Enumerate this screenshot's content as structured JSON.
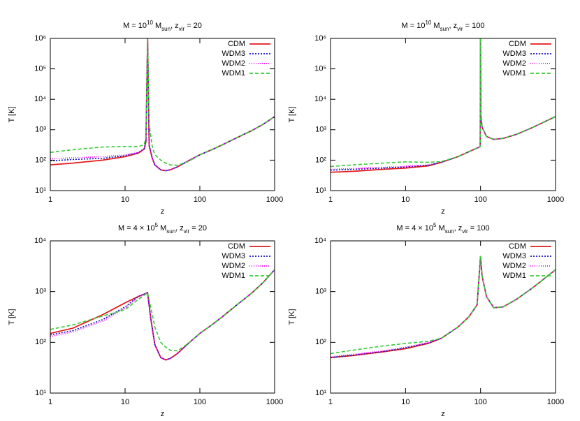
{
  "chart_data": [
    {
      "type": "line",
      "title": [
        "M = 10",
        {
          "sup": "10"
        },
        " M",
        {
          "sub": "sun"
        },
        ", z",
        {
          "sub": "vir"
        },
        " = 20"
      ],
      "xlabel": "z",
      "ylabel": "T [K]",
      "xscale": "log",
      "yscale": "log",
      "legend": "upper right",
      "xlim": [
        1,
        1000
      ],
      "ylim": [
        10,
        1000000
      ],
      "xticks": [
        1,
        10,
        100,
        1000
      ],
      "yticks": [
        {
          "value": 10,
          "label": "10¹"
        },
        {
          "value": 100,
          "label": "10²"
        },
        {
          "value": 1000,
          "label": "10³"
        },
        {
          "value": 10000,
          "label": "10⁴"
        },
        {
          "value": 100000,
          "label": "10⁵"
        },
        {
          "value": 1000000,
          "label": "10⁶"
        }
      ],
      "x": [
        1,
        2,
        5,
        10,
        15,
        18,
        19,
        20,
        21,
        23,
        25,
        30,
        35,
        40,
        50,
        70,
        100,
        150,
        200,
        300,
        500,
        700,
        1000
      ],
      "series": [
        {
          "name": "CDM",
          "color": "#e41a1c",
          "dash": "none",
          "values": [
            70,
            80,
            100,
            130,
            170,
            230,
            400,
            1000000,
            300,
            120,
            70,
            48,
            45,
            48,
            60,
            95,
            150,
            230,
            320,
            520,
            950,
            1500,
            2700
          ]
        },
        {
          "name": "WDM3",
          "color": "#1010d0",
          "dash": "2,2",
          "values": [
            95,
            105,
            115,
            140,
            175,
            235,
            410,
            1000000,
            300,
            120,
            70,
            48,
            45,
            48,
            60,
            95,
            150,
            230,
            320,
            520,
            950,
            1500,
            2700
          ]
        },
        {
          "name": "WDM2",
          "color": "#ff00ff",
          "dash": "1,2",
          "values": [
            110,
            120,
            130,
            150,
            180,
            240,
            420,
            1000000,
            300,
            120,
            70,
            48,
            45,
            48,
            60,
            95,
            150,
            230,
            320,
            520,
            950,
            1500,
            2700
          ]
        },
        {
          "name": "WDM1",
          "color": "#33cc33",
          "dash": "5,3",
          "values": [
            180,
            220,
            270,
            280,
            280,
            320,
            600,
            1000000,
            1500,
            300,
            150,
            100,
            80,
            70,
            68,
            90,
            150,
            230,
            320,
            520,
            950,
            1500,
            2700
          ]
        }
      ]
    },
    {
      "type": "line",
      "title": [
        "M = 10",
        {
          "sup": "10"
        },
        " M",
        {
          "sub": "sun"
        },
        ", z",
        {
          "sub": "vir"
        },
        " = 100"
      ],
      "xlabel": "z",
      "ylabel": "T [K]",
      "xscale": "log",
      "yscale": "log",
      "legend": "upper right",
      "xlim": [
        1,
        1000
      ],
      "ylim": [
        10,
        1000000
      ],
      "xticks": [
        1,
        10,
        100,
        1000
      ],
      "yticks": [
        {
          "value": 10,
          "label": "10¹"
        },
        {
          "value": 100,
          "label": "10²"
        },
        {
          "value": 1000,
          "label": "10³"
        },
        {
          "value": 10000,
          "label": "10⁴"
        },
        {
          "value": 100000,
          "label": "10⁵"
        },
        {
          "value": 1000000,
          "label": "10⁶"
        }
      ],
      "x": [
        1,
        2,
        5,
        10,
        20,
        30,
        50,
        70,
        90,
        99,
        100,
        101,
        105,
        120,
        150,
        200,
        300,
        500,
        1000
      ],
      "series": [
        {
          "name": "CDM",
          "color": "#e41a1c",
          "dash": "none",
          "values": [
            40,
            43,
            50,
            55,
            65,
            85,
            130,
            190,
            250,
            280,
            1000000,
            3000,
            1200,
            600,
            480,
            520,
            700,
            1200,
            2700
          ]
        },
        {
          "name": "WDM3",
          "color": "#1010d0",
          "dash": "2,2",
          "values": [
            47,
            50,
            55,
            60,
            68,
            85,
            130,
            190,
            250,
            280,
            1000000,
            3000,
            1200,
            600,
            480,
            520,
            700,
            1200,
            2700
          ]
        },
        {
          "name": "WDM2",
          "color": "#ff00ff",
          "dash": "1,2",
          "values": [
            50,
            53,
            58,
            63,
            70,
            86,
            130,
            190,
            250,
            280,
            1000000,
            3000,
            1200,
            600,
            480,
            520,
            700,
            1200,
            2700
          ]
        },
        {
          "name": "WDM1",
          "color": "#33cc33",
          "dash": "5,3",
          "values": [
            62,
            70,
            80,
            88,
            85,
            90,
            130,
            190,
            250,
            280,
            1000000,
            3000,
            1200,
            600,
            480,
            520,
            700,
            1200,
            2700
          ]
        }
      ]
    },
    {
      "type": "line",
      "title": [
        "M = 4 × 10",
        {
          "sup": "5"
        },
        " M",
        {
          "sub": "sun"
        },
        ", z",
        {
          "sub": "vir"
        },
        " = 20"
      ],
      "xlabel": "z",
      "ylabel": "T [K]",
      "xscale": "log",
      "yscale": "log",
      "legend": "upper right",
      "xlim": [
        1,
        1000
      ],
      "ylim": [
        10,
        10000
      ],
      "xticks": [
        1,
        10,
        100,
        1000
      ],
      "yticks": [
        {
          "value": 10,
          "label": "10¹"
        },
        {
          "value": 100,
          "label": "10²"
        },
        {
          "value": 1000,
          "label": "10³"
        },
        {
          "value": 10000,
          "label": "10⁴"
        }
      ],
      "x": [
        1,
        2,
        5,
        10,
        15,
        20,
        22,
        25,
        30,
        35,
        40,
        50,
        70,
        100,
        150,
        200,
        300,
        500,
        700,
        1000
      ],
      "series": [
        {
          "name": "CDM",
          "color": "#e41a1c",
          "dash": "none",
          "values": [
            150,
            190,
            350,
            600,
            800,
            950,
            300,
            90,
            50,
            45,
            48,
            60,
            95,
            150,
            230,
            320,
            520,
            950,
            1500,
            2700
          ]
        },
        {
          "name": "WDM3",
          "color": "#1010d0",
          "dash": "2,2",
          "values": [
            140,
            170,
            280,
            500,
            800,
            950,
            300,
            90,
            50,
            45,
            48,
            60,
            95,
            150,
            230,
            320,
            520,
            950,
            1500,
            2700
          ]
        },
        {
          "name": "WDM2",
          "color": "#ff00ff",
          "dash": "1,2",
          "values": [
            130,
            160,
            260,
            470,
            780,
            950,
            300,
            90,
            50,
            45,
            48,
            60,
            95,
            150,
            230,
            320,
            520,
            950,
            1500,
            2700
          ]
        },
        {
          "name": "WDM1",
          "color": "#33cc33",
          "dash": "5,3",
          "values": [
            180,
            220,
            330,
            440,
            700,
            950,
            500,
            200,
            100,
            80,
            70,
            68,
            95,
            150,
            230,
            320,
            520,
            950,
            1500,
            2700
          ]
        }
      ]
    },
    {
      "type": "line",
      "title": [
        "M = 4 × 10",
        {
          "sup": "5"
        },
        " M",
        {
          "sub": "sun"
        },
        ", z",
        {
          "sub": "vir"
        },
        " = 100"
      ],
      "xlabel": "z",
      "ylabel": "T [K]",
      "xscale": "log",
      "yscale": "log",
      "legend": "upper right",
      "xlim": [
        1,
        1000
      ],
      "ylim": [
        10,
        10000
      ],
      "xticks": [
        1,
        10,
        100,
        1000
      ],
      "yticks": [
        {
          "value": 10,
          "label": "10¹"
        },
        {
          "value": 100,
          "label": "10²"
        },
        {
          "value": 1000,
          "label": "10³"
        },
        {
          "value": 10000,
          "label": "10⁴"
        }
      ],
      "x": [
        1,
        2,
        5,
        10,
        20,
        30,
        50,
        70,
        90,
        100,
        105,
        120,
        150,
        200,
        300,
        500,
        1000
      ],
      "series": [
        {
          "name": "CDM",
          "color": "#e41a1c",
          "dash": "none",
          "values": [
            50,
            55,
            65,
            75,
            95,
            120,
            200,
            320,
            550,
            5000,
            2000,
            800,
            480,
            500,
            700,
            1200,
            2700
          ]
        },
        {
          "name": "WDM3",
          "color": "#1010d0",
          "dash": "2,2",
          "values": [
            50,
            56,
            66,
            78,
            97,
            120,
            200,
            320,
            550,
            5000,
            2000,
            800,
            480,
            500,
            700,
            1200,
            2700
          ]
        },
        {
          "name": "WDM2",
          "color": "#ff00ff",
          "dash": "1,2",
          "values": [
            52,
            58,
            68,
            80,
            100,
            121,
            200,
            320,
            550,
            5000,
            2000,
            800,
            480,
            500,
            700,
            1200,
            2700
          ]
        },
        {
          "name": "WDM1",
          "color": "#33cc33",
          "dash": "5,3",
          "values": [
            60,
            70,
            85,
            95,
            105,
            120,
            200,
            320,
            550,
            5000,
            2000,
            800,
            480,
            500,
            700,
            1200,
            2700
          ]
        }
      ]
    }
  ]
}
